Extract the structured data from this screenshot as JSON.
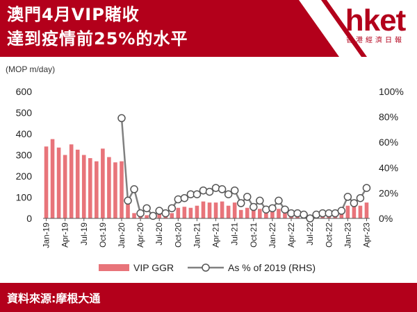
{
  "header": {
    "title_line1": "澳門4月VIP賭收",
    "title_line2": "達到疫情前25%的水平",
    "brand": "hket",
    "brand_sub": "香港經濟日報"
  },
  "footer": {
    "source": "資料來源:摩根大通"
  },
  "colors": {
    "header_bg": "#b3001b",
    "bar": "#e8747a",
    "line": "#808080",
    "marker_fill": "#ffffff"
  },
  "chart_data": {
    "type": "bar",
    "unit_label": "(MOP m/day)",
    "categories": [
      "Jan-19",
      "Feb-19",
      "Mar-19",
      "Apr-19",
      "May-19",
      "Jun-19",
      "Jul-19",
      "Aug-19",
      "Sep-19",
      "Oct-19",
      "Nov-19",
      "Dec-19",
      "Jan-20",
      "Feb-20",
      "Mar-20",
      "Apr-20",
      "May-20",
      "Jun-20",
      "Jul-20",
      "Aug-20",
      "Sep-20",
      "Oct-20",
      "Nov-20",
      "Dec-20",
      "Jan-21",
      "Feb-21",
      "Mar-21",
      "Apr-21",
      "May-21",
      "Jun-21",
      "Jul-21",
      "Aug-21",
      "Sep-21",
      "Oct-21",
      "Nov-21",
      "Dec-21",
      "Jan-22",
      "Feb-22",
      "Mar-22",
      "Apr-22",
      "May-22",
      "Jun-22",
      "Jul-22",
      "Aug-22",
      "Sep-22",
      "Oct-22",
      "Nov-22",
      "Dec-22",
      "Jan-23",
      "Feb-23",
      "Mar-23",
      "Apr-23"
    ],
    "x_tick_labels": [
      "Jan-19",
      "Apr-19",
      "Jul-19",
      "Oct-19",
      "Jan-20",
      "Apr-20",
      "Jul-20",
      "Oct-20",
      "Jan-21",
      "Apr-21",
      "Jul-21",
      "Oct-21",
      "Jan-22",
      "Apr-22",
      "Jul-22",
      "Oct-22",
      "Jan-23",
      "Apr-23"
    ],
    "series": [
      {
        "name": "VIP GGR",
        "type": "bar",
        "axis": "left",
        "values": [
          340,
          375,
          335,
          300,
          350,
          325,
          300,
          285,
          270,
          330,
          290,
          265,
          270,
          90,
          25,
          10,
          15,
          15,
          20,
          30,
          25,
          50,
          55,
          50,
          60,
          80,
          75,
          75,
          80,
          60,
          75,
          40,
          50,
          40,
          45,
          30,
          35,
          45,
          40,
          20,
          15,
          15,
          5,
          10,
          20,
          20,
          25,
          30,
          60,
          55,
          60,
          75
        ]
      },
      {
        "name": "As % of 2019 (RHS)",
        "type": "line",
        "axis": "right",
        "values": [
          null,
          null,
          null,
          null,
          null,
          null,
          null,
          null,
          null,
          null,
          null,
          null,
          79,
          14,
          23,
          4,
          8,
          2,
          6,
          4,
          8,
          15,
          16,
          19,
          19,
          22,
          21,
          24,
          23,
          19,
          22,
          12,
          17,
          9,
          14,
          7,
          8,
          14,
          7,
          4,
          4,
          3,
          0,
          3,
          4,
          4,
          4,
          6,
          17,
          12,
          16,
          24
        ]
      }
    ],
    "y_left": {
      "min": 0,
      "max": 600,
      "ticks": [
        "0",
        "100",
        "200",
        "300",
        "400",
        "500",
        "600"
      ]
    },
    "y_right": {
      "min": 0,
      "max": 100,
      "ticks": [
        "0%",
        "20%",
        "40%",
        "60%",
        "80%",
        "100%"
      ]
    },
    "grid": false,
    "legend_position": "bottom"
  }
}
